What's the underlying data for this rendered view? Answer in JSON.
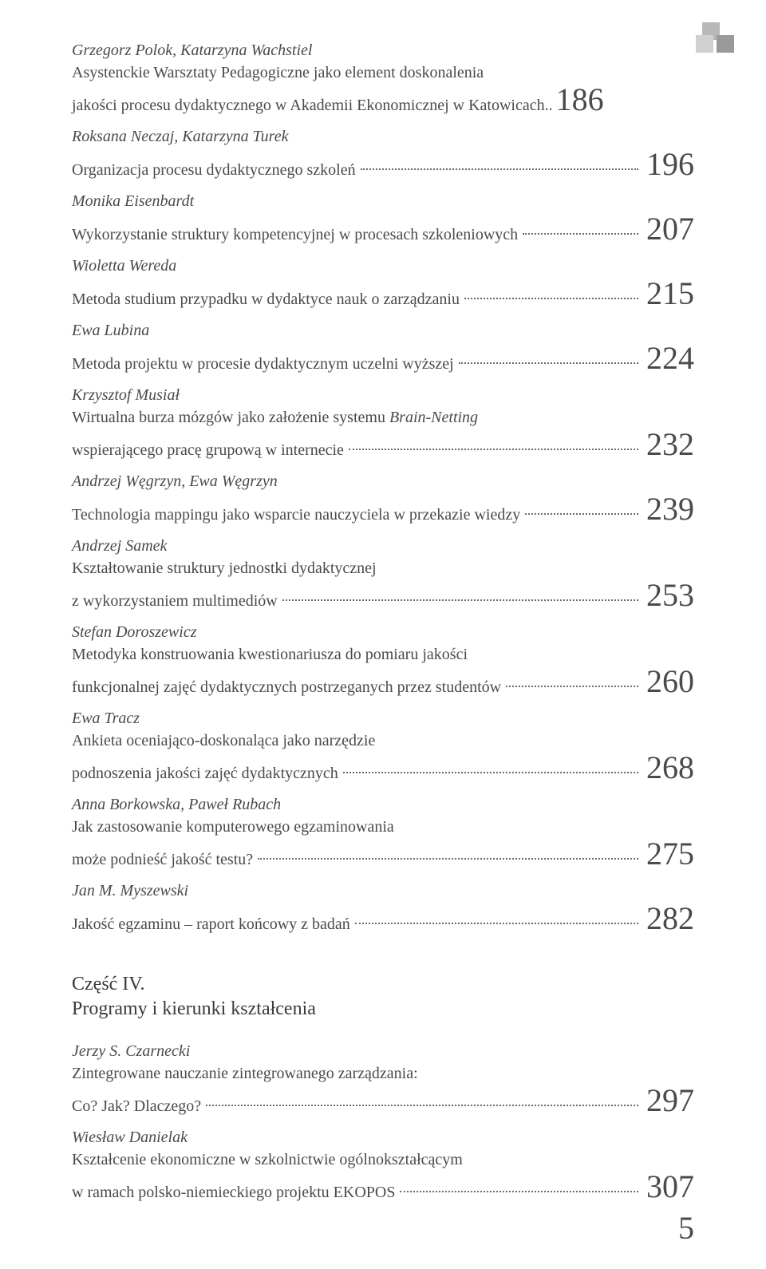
{
  "colors": {
    "text": "#4a4a4a",
    "background": "#ffffff",
    "decoration_light": "#d0d0d0",
    "decoration_mid": "#b8b8b8",
    "decoration_dark": "#9a9a9a"
  },
  "typography": {
    "body_fontsize": 20,
    "pagenum_fontsize": 40,
    "section_fontsize": 24,
    "font_family": "Georgia, serif"
  },
  "entries": [
    {
      "author": "Grzegorz Polok, Katarzyna Wachstiel",
      "title_lines": [
        "Asystenckie Warsztaty Pedagogiczne jako element doskonalenia"
      ],
      "last_line": "jakości procesu dydaktycznego w Akademii Ekonomicznej w Katowicach",
      "trail": "..",
      "page": "186"
    },
    {
      "author": "Roksana Neczaj, Katarzyna Turek",
      "title_lines": [],
      "last_line": "Organizacja procesu dydaktycznego szkoleń",
      "page": "196"
    },
    {
      "author": "Monika Eisenbardt",
      "title_lines": [],
      "last_line": "Wykorzystanie struktury kompetencyjnej w procesach szkoleniowych",
      "page": "207"
    },
    {
      "author": "Wioletta Wereda",
      "title_lines": [],
      "last_line": "Metoda studium przypadku w dydaktyce nauk o zarządzaniu",
      "page": "215"
    },
    {
      "author": "Ewa Lubina",
      "title_lines": [],
      "last_line": "Metoda projektu w procesie dydaktycznym uczelni wyższej",
      "page": "224"
    },
    {
      "author": "Krzysztof Musiał",
      "title_lines": [
        "Wirtualna burza mózgów jako założenie systemu "
      ],
      "em_after": "Brain-Netting",
      "last_line": "wspierającego pracę grupową w internecie",
      "page": "232"
    },
    {
      "author": "Andrzej Węgrzyn, Ewa Węgrzyn",
      "title_lines": [],
      "last_line": "Technologia mappingu jako wsparcie nauczyciela w przekazie wiedzy",
      "page": "239"
    },
    {
      "author": "Andrzej Samek",
      "title_lines": [
        "Kształtowanie struktury jednostki dydaktycznej"
      ],
      "last_line": "z wykorzystaniem multimediów",
      "page": "253"
    },
    {
      "author": "Stefan Doroszewicz",
      "title_lines": [
        "Metodyka konstruowania kwestionariusza do pomiaru jakości"
      ],
      "last_line": "funkcjonalnej zajęć dydaktycznych postrzeganych przez studentów",
      "page": "260"
    },
    {
      "author": "Ewa Tracz",
      "title_lines": [
        "Ankieta oceniająco-doskonaląca jako narzędzie"
      ],
      "last_line": "podnoszenia jakości zajęć dydaktycznych",
      "page": "268"
    },
    {
      "author": "Anna Borkowska, Paweł Rubach",
      "title_lines": [
        "Jak zastosowanie komputerowego egzaminowania"
      ],
      "last_line": "może podnieść jakość testu?",
      "page": "275"
    },
    {
      "author": "Jan M. Myszewski",
      "title_lines": [],
      "last_line": "Jakość egzaminu – raport końcowy z badań",
      "page": "282"
    }
  ],
  "section": {
    "part": "Część IV.",
    "title": "Programy i kierunki kształcenia"
  },
  "entries2": [
    {
      "author": "Jerzy S. Czarnecki",
      "title_lines": [
        "Zintegrowane nauczanie zintegrowanego zarządzania:"
      ],
      "last_line": "Co? Jak? Dlaczego?",
      "page": "297"
    },
    {
      "author": "Wiesław Danielak",
      "title_lines": [
        "Kształcenie ekonomiczne w szkolnictwie ogólnokształcącym"
      ],
      "last_line": "w ramach polsko-niemieckiego projektu EKOPOS",
      "page": "307"
    }
  ],
  "footer_page": "5"
}
